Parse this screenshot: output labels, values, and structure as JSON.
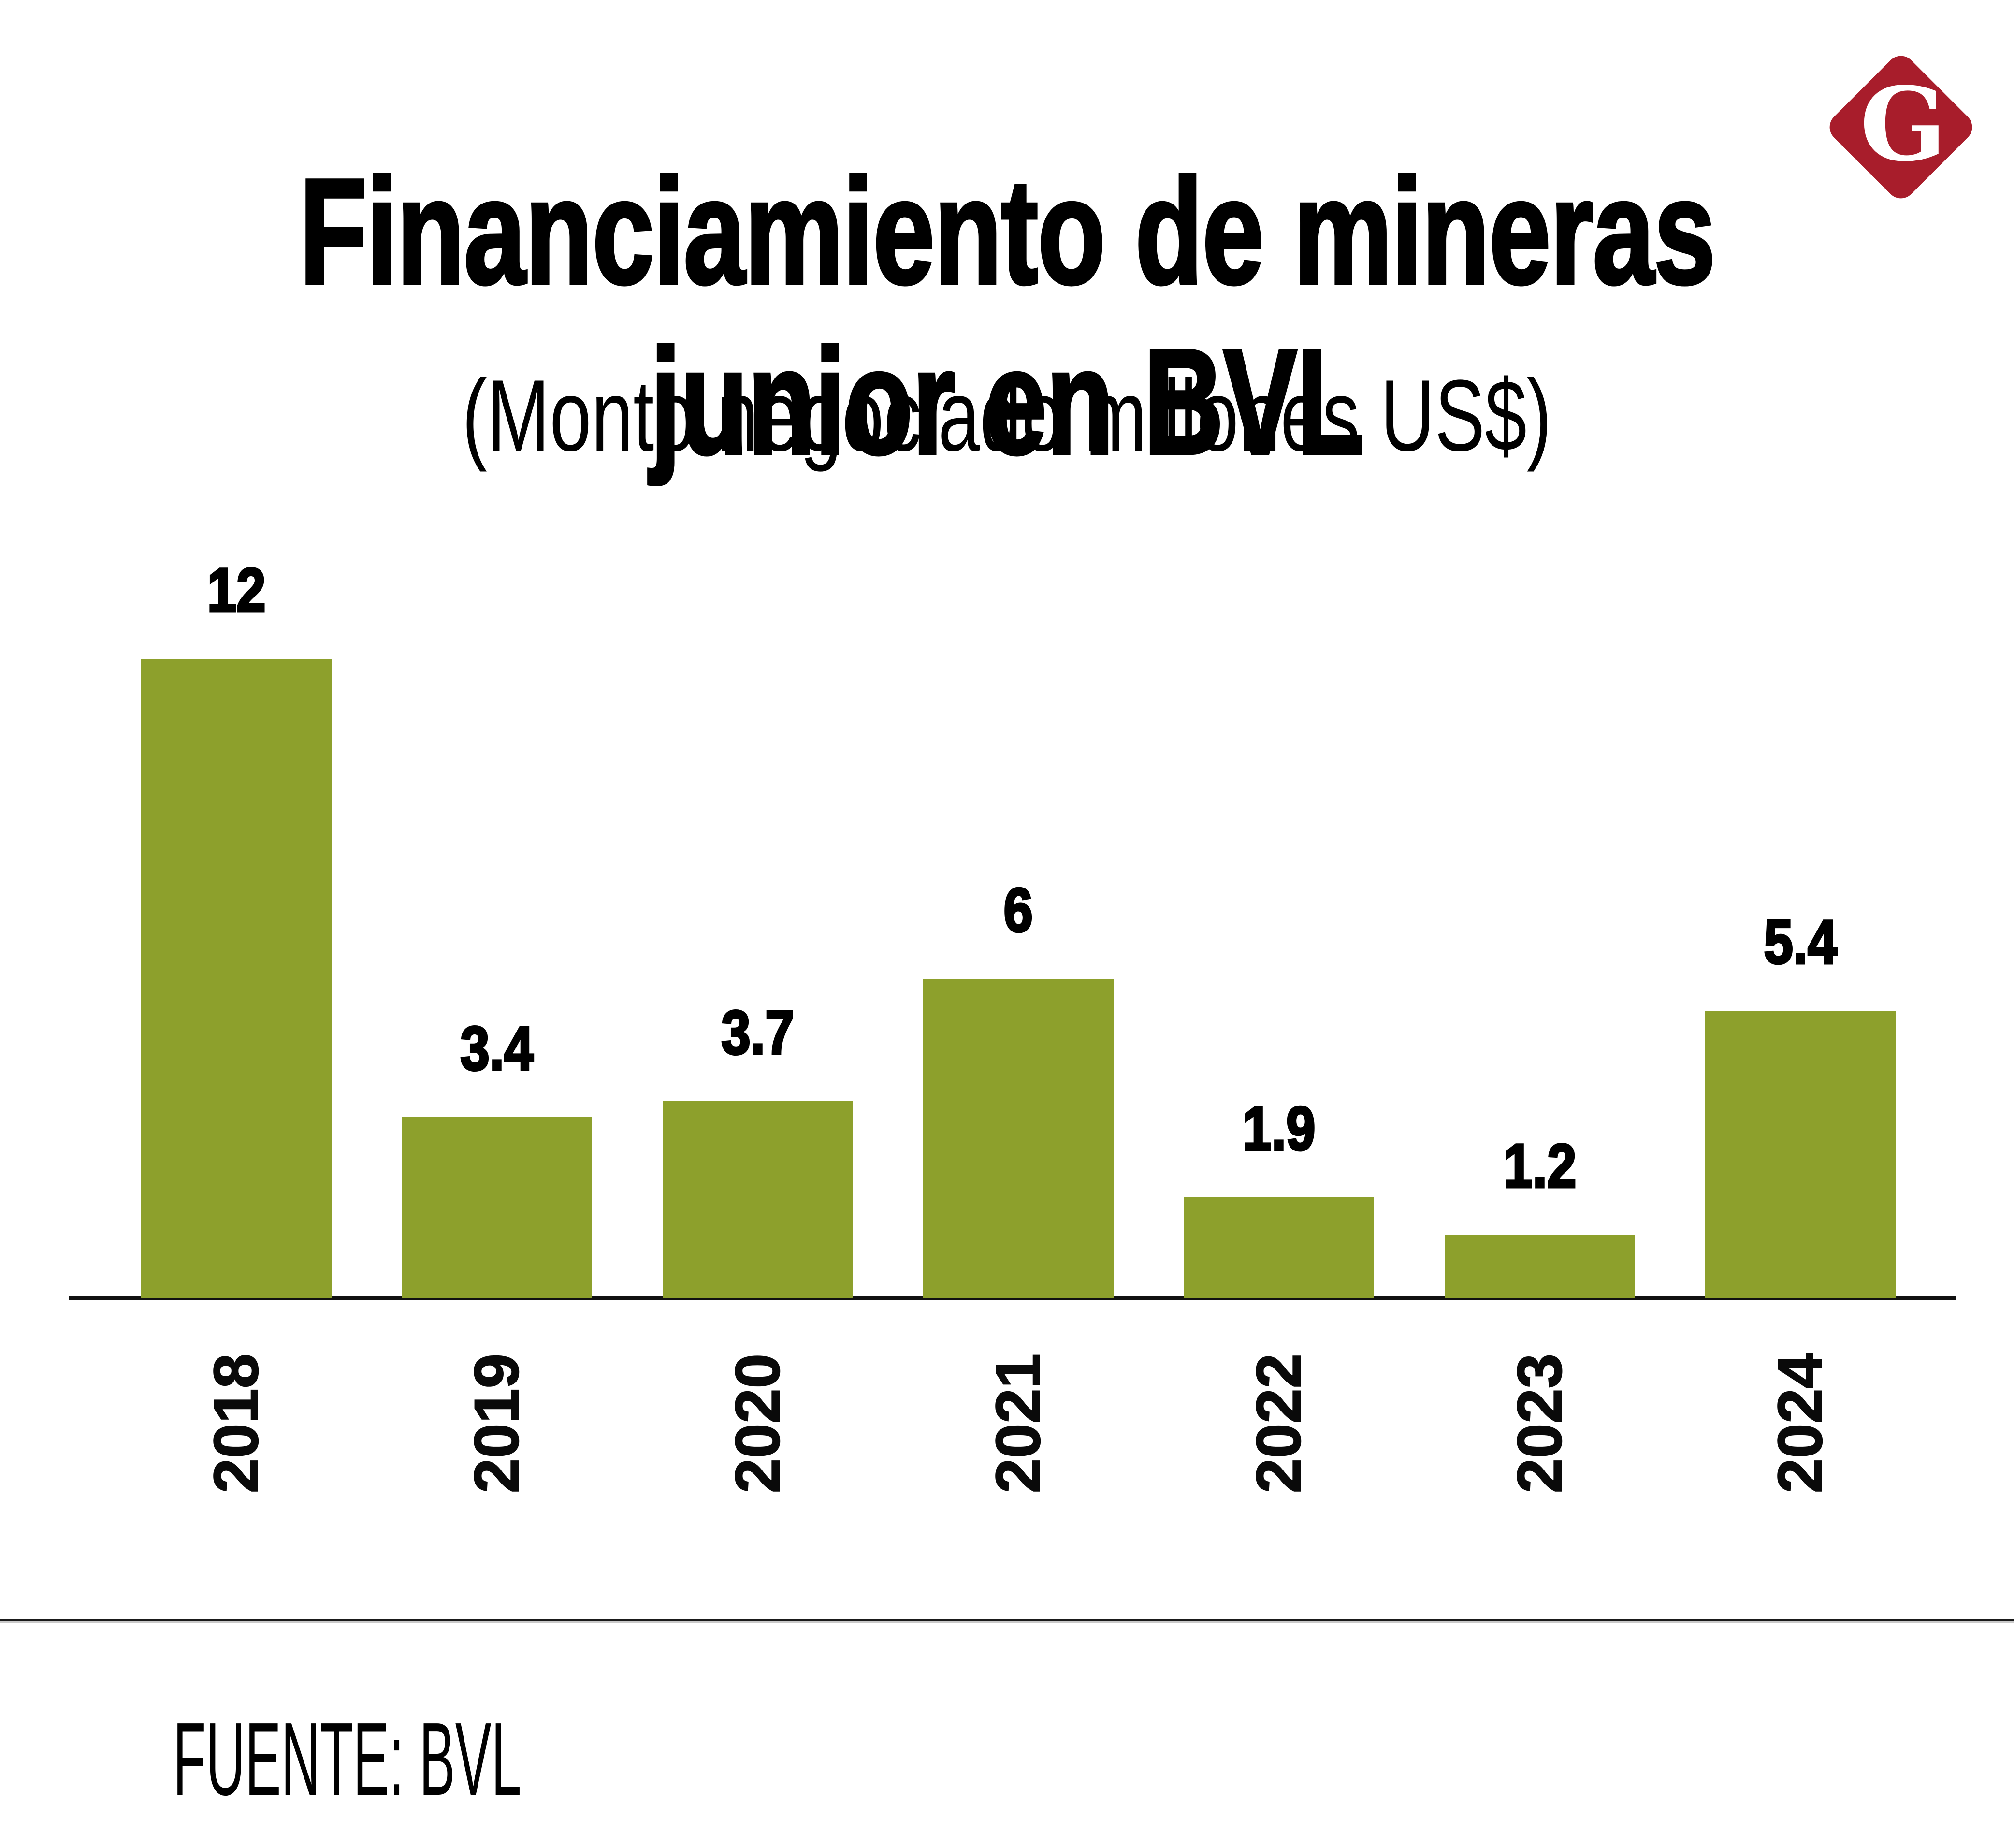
{
  "header": {
    "title_line1": "Financiamiento de mineras",
    "title_line2": "junior en BVL",
    "subtitle": "(Monto negociado millones US$)"
  },
  "logo": {
    "letter": "G",
    "color": "#A81D2B"
  },
  "chart_data": {
    "type": "bar",
    "title": "Financiamiento de mineras junior en BVL",
    "subtitle": "(Monto negociado millones US$)",
    "categories": [
      "2018",
      "2019",
      "2020",
      "2021",
      "2022",
      "2023",
      "2024"
    ],
    "values": [
      12,
      3.4,
      3.7,
      6,
      1.9,
      1.2,
      5.4
    ],
    "value_labels": [
      "12",
      "3.4",
      "3.7",
      "6",
      "1.9",
      "1.2",
      "5.4"
    ],
    "xlabel": "",
    "ylabel": "",
    "ylim": [
      0,
      12
    ],
    "grid": false,
    "legend": false,
    "bar_color": "#8DA02C",
    "axis_color": "#111111"
  },
  "footer": {
    "source": "FUENTE: BVL"
  },
  "colors": {
    "background": "#ffffff",
    "text": "#000000",
    "bar_green": "#8DA02C",
    "logo_red": "#A81D2B",
    "divider_dark": "#1a1a1a",
    "divider_light": "#c9c9c9"
  }
}
